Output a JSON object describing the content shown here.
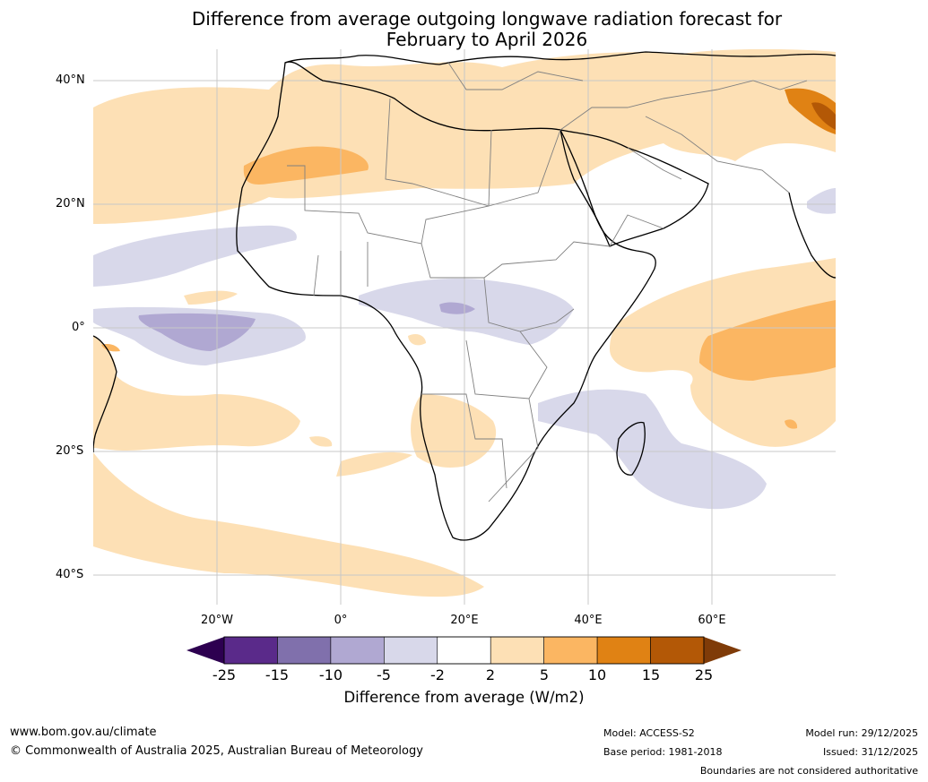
{
  "title": {
    "line1": "Difference from average outgoing longwave radiation forecast for",
    "line2": "February to April 2026"
  },
  "axes": {
    "lat_labels": [
      "40°N",
      "20°N",
      "0°",
      "20°S",
      "40°S"
    ],
    "lon_labels": [
      "20°W",
      "0°",
      "20°E",
      "40°E",
      "60°E"
    ]
  },
  "legend": {
    "title": "Difference from average (W/m2)",
    "tick_labels": [
      "-25",
      "-15",
      "-10",
      "-5",
      "-2",
      "2",
      "5",
      "10",
      "15",
      "25"
    ],
    "colors": [
      "#2d0050",
      "#5a2a8a",
      "#8070ac",
      "#b0a8d2",
      "#d8d8ea",
      "#ffffff",
      "#fde0b5",
      "#fbb662",
      "#e08214",
      "#b35806",
      "#7f3b08"
    ]
  },
  "footer": {
    "url": "www.bom.gov.au/climate",
    "copyright": "© Commonwealth of Australia 2025, Australian Bureau of Meteorology",
    "model": "Model: ACCESS-S2",
    "base_period": "Base period: 1981-2018",
    "model_run": "Model run: 29/12/2025",
    "issued": "Issued: 31/12/2025",
    "disclaimer": "Boundaries are not considered authoritative"
  },
  "map_data": {
    "lon_range": [
      -40,
      80
    ],
    "lat_range": [
      -45,
      45
    ],
    "anomaly_regions": [
      {
        "name": "north-atlantic-sahara-positive",
        "level": "2 to 5"
      },
      {
        "name": "western-sahara-positive",
        "level": "5 to 10"
      },
      {
        "name": "mediterranean-middle-east-positive",
        "level": "2 to 5"
      },
      {
        "name": "iran-positive-strong",
        "level": "10 to 15"
      },
      {
        "name": "tropical-atlantic-negative",
        "level": "-5 to -2"
      },
      {
        "name": "equatorial-atlantic-negative",
        "level": "-10 to -5"
      },
      {
        "name": "central-africa-negative",
        "level": "-5 to -2"
      },
      {
        "name": "southern-africa-positive",
        "level": "2 to 5"
      },
      {
        "name": "south-atlantic-positive",
        "level": "2 to 5"
      },
      {
        "name": "indian-ocean-positive",
        "level": "2 to 5"
      },
      {
        "name": "indian-ocean-positive-core",
        "level": "5 to 10"
      },
      {
        "name": "madagascar-negative",
        "level": "-5 to -2"
      }
    ]
  }
}
